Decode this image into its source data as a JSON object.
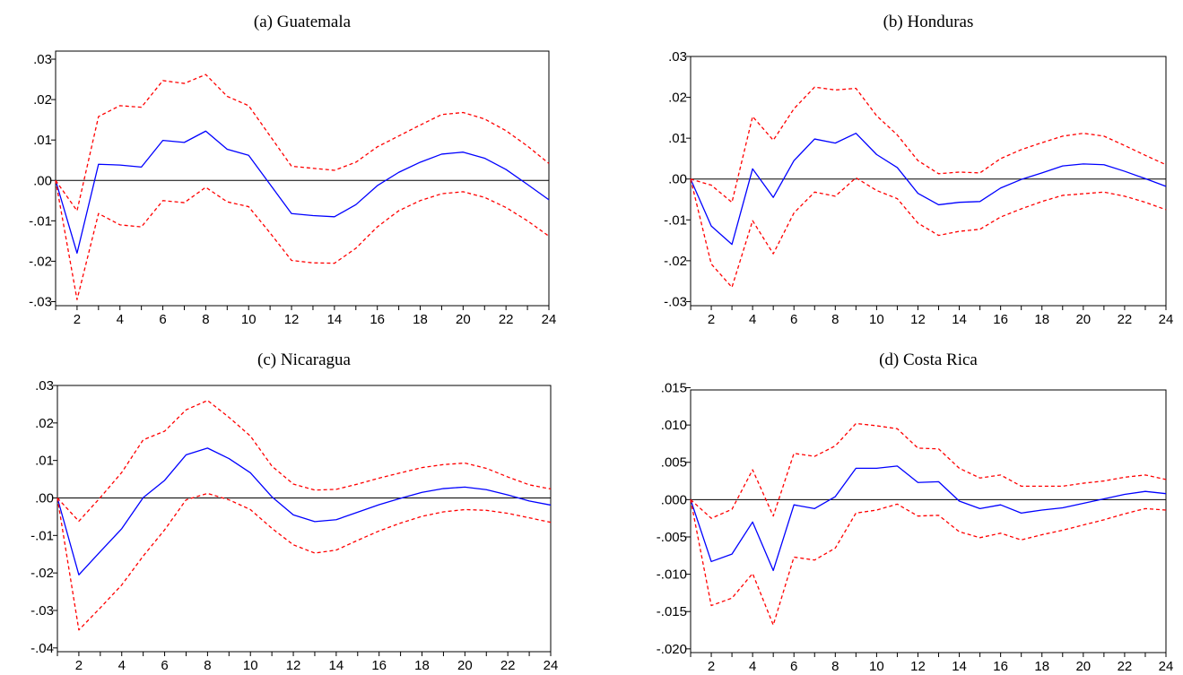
{
  "colors": {
    "response": "#0000ff",
    "band": "#ff0000",
    "axis": "#000000"
  },
  "chart_data": [
    {
      "type": "line",
      "title": "(a) Guatemala",
      "x": [
        1,
        2,
        3,
        4,
        5,
        6,
        7,
        8,
        9,
        10,
        11,
        12,
        13,
        14,
        15,
        16,
        17,
        18,
        19,
        20,
        21,
        22,
        23,
        24
      ],
      "xticks": [
        2,
        4,
        6,
        8,
        10,
        12,
        14,
        16,
        18,
        20,
        22,
        24
      ],
      "ylim": [
        -0.031,
        0.032
      ],
      "yticks": [
        -0.03,
        -0.02,
        -0.01,
        0.0,
        0.01,
        0.02,
        0.03
      ],
      "ytick_labels": [
        "-.03",
        "-.02",
        "-.01",
        ".00",
        ".01",
        ".02",
        ".03"
      ],
      "series": [
        {
          "style": "solid",
          "values": [
            0,
            -0.018,
            0.004,
            0.0038,
            0.0033,
            0.0099,
            0.0094,
            0.0122,
            0.0077,
            0.0062,
            -0.001,
            -0.0082,
            -0.0087,
            -0.009,
            -0.006,
            -0.0013,
            0.002,
            0.0045,
            0.0065,
            0.007,
            0.0055,
            0.0027,
            -0.001,
            -0.0048
          ]
        },
        {
          "style": "dashed",
          "values": [
            0,
            -0.0075,
            0.0158,
            0.0185,
            0.0181,
            0.0247,
            0.024,
            0.0262,
            0.0208,
            0.0185,
            0.011,
            0.0035,
            0.003,
            0.0025,
            0.0045,
            0.0083,
            0.011,
            0.0137,
            0.0163,
            0.0168,
            0.0152,
            0.0123,
            0.0085,
            0.0042
          ]
        },
        {
          "style": "dashed",
          "values": [
            0,
            -0.0295,
            -0.0082,
            -0.011,
            -0.0115,
            -0.005,
            -0.0055,
            -0.0017,
            -0.0053,
            -0.0065,
            -0.013,
            -0.0198,
            -0.0204,
            -0.0205,
            -0.0168,
            -0.0115,
            -0.0075,
            -0.005,
            -0.0033,
            -0.0028,
            -0.0042,
            -0.0067,
            -0.01,
            -0.0138
          ]
        }
      ]
    },
    {
      "type": "line",
      "title": "(b) Honduras",
      "x": [
        1,
        2,
        3,
        4,
        5,
        6,
        7,
        8,
        9,
        10,
        11,
        12,
        13,
        14,
        15,
        16,
        17,
        18,
        19,
        20,
        21,
        22,
        23,
        24
      ],
      "xticks": [
        2,
        4,
        6,
        8,
        10,
        12,
        14,
        16,
        18,
        20,
        22,
        24
      ],
      "ylim": [
        -0.031,
        0.03
      ],
      "yticks": [
        -0.03,
        -0.02,
        -0.01,
        0.0,
        0.01,
        0.02,
        0.03
      ],
      "ytick_labels": [
        "-.03",
        "-.02",
        "-.01",
        ".00",
        ".01",
        ".02",
        ".03"
      ],
      "series": [
        {
          "style": "solid",
          "values": [
            0,
            -0.0115,
            -0.016,
            0.0025,
            -0.0045,
            0.0045,
            0.0098,
            0.0088,
            0.0112,
            0.006,
            0.0028,
            -0.0035,
            -0.0063,
            -0.0057,
            -0.0055,
            -0.0022,
            -0.0001,
            0.0015,
            0.0032,
            0.0037,
            0.0035,
            0.0019,
            0.0001,
            -0.0018
          ]
        },
        {
          "style": "dashed",
          "values": [
            0,
            -0.0015,
            -0.0057,
            0.0153,
            0.0095,
            0.0172,
            0.0225,
            0.0218,
            0.0222,
            0.0155,
            0.0108,
            0.0045,
            0.0013,
            0.0017,
            0.0015,
            0.005,
            0.0072,
            0.0089,
            0.0105,
            0.0112,
            0.0105,
            0.0082,
            0.0058,
            0.0035
          ]
        },
        {
          "style": "dashed",
          "values": [
            0,
            -0.0208,
            -0.0265,
            -0.0102,
            -0.0183,
            -0.0083,
            -0.0032,
            -0.0042,
            0.0003,
            -0.0028,
            -0.0048,
            -0.0108,
            -0.0138,
            -0.0128,
            -0.0123,
            -0.0093,
            -0.0073,
            -0.0055,
            -0.004,
            -0.0036,
            -0.0032,
            -0.0042,
            -0.0057,
            -0.0075
          ]
        }
      ]
    },
    {
      "type": "line",
      "title": "(c) Nicaragua",
      "x": [
        1,
        2,
        3,
        4,
        5,
        6,
        7,
        8,
        9,
        10,
        11,
        12,
        13,
        14,
        15,
        16,
        17,
        18,
        19,
        20,
        21,
        22,
        23,
        24
      ],
      "xticks": [
        2,
        4,
        6,
        8,
        10,
        12,
        14,
        16,
        18,
        20,
        22,
        24
      ],
      "ylim": [
        -0.041,
        0.03
      ],
      "yticks": [
        -0.04,
        -0.03,
        -0.02,
        -0.01,
        0.0,
        0.01,
        0.02,
        0.03
      ],
      "ytick_labels": [
        "-.04",
        "-.03",
        "-.02",
        "-.01",
        ".00",
        ".01",
        ".02",
        ".03"
      ],
      "series": [
        {
          "style": "solid",
          "values": [
            0,
            -0.0205,
            -0.0143,
            -0.0082,
            0.0001,
            0.0047,
            0.0115,
            0.0133,
            0.0105,
            0.0067,
            0.0003,
            -0.0045,
            -0.0063,
            -0.0058,
            -0.0038,
            -0.0018,
            -0.0001,
            0.0015,
            0.0025,
            0.0029,
            0.0022,
            0.0008,
            -0.0008,
            -0.0019
          ]
        },
        {
          "style": "dashed",
          "values": [
            0,
            -0.0062,
            0.0001,
            0.0068,
            0.0155,
            0.0178,
            0.0235,
            0.026,
            0.0215,
            0.0165,
            0.0085,
            0.0037,
            0.0021,
            0.0023,
            0.0037,
            0.0053,
            0.0067,
            0.0081,
            0.0089,
            0.0093,
            0.0079,
            0.0056,
            0.0035,
            0.0024
          ]
        },
        {
          "style": "dashed",
          "values": [
            0,
            -0.0352,
            -0.0293,
            -0.0232,
            -0.0155,
            -0.0085,
            -0.0005,
            0.0012,
            -0.0005,
            -0.0031,
            -0.0081,
            -0.0125,
            -0.0147,
            -0.0139,
            -0.0113,
            -0.0088,
            -0.0067,
            -0.0049,
            -0.0037,
            -0.0031,
            -0.0033,
            -0.0041,
            -0.0053,
            -0.0065
          ]
        }
      ]
    },
    {
      "type": "line",
      "title": "(d) Costa Rica",
      "x": [
        1,
        2,
        3,
        4,
        5,
        6,
        7,
        8,
        9,
        10,
        11,
        12,
        13,
        14,
        15,
        16,
        17,
        18,
        19,
        20,
        21,
        22,
        23,
        24
      ],
      "xticks": [
        2,
        4,
        6,
        8,
        10,
        12,
        14,
        16,
        18,
        20,
        22,
        24
      ],
      "ylim": [
        -0.0205,
        0.0147
      ],
      "yticks": [
        -0.02,
        -0.015,
        -0.01,
        -0.005,
        0.0,
        0.005,
        0.01,
        0.015
      ],
      "ytick_labels": [
        "-.020",
        "-.015",
        "-.010",
        "-.005",
        ".000",
        ".005",
        ".010",
        ".015"
      ],
      "series": [
        {
          "style": "solid",
          "values": [
            0,
            -0.0083,
            -0.0073,
            -0.003,
            -0.0095,
            -0.0007,
            -0.0012,
            0.0004,
            0.0042,
            0.0042,
            0.0045,
            0.0023,
            0.0024,
            -0.0002,
            -0.0012,
            -0.0007,
            -0.0018,
            -0.0014,
            -0.0011,
            -0.0005,
            0.0001,
            0.0007,
            0.0011,
            0.0008
          ]
        },
        {
          "style": "dashed",
          "values": [
            0,
            -0.0025,
            -0.0013,
            0.004,
            -0.0022,
            0.0062,
            0.0058,
            0.0072,
            0.0102,
            0.0099,
            0.0095,
            0.0069,
            0.0068,
            0.0042,
            0.0029,
            0.0033,
            0.0018,
            0.0018,
            0.0018,
            0.0022,
            0.0025,
            0.003,
            0.0033,
            0.0027
          ]
        },
        {
          "style": "dashed",
          "values": [
            0,
            -0.0142,
            -0.0132,
            -0.0099,
            -0.0168,
            -0.0077,
            -0.0081,
            -0.0065,
            -0.0018,
            -0.0014,
            -0.0006,
            -0.0022,
            -0.0021,
            -0.0043,
            -0.0051,
            -0.0045,
            -0.0054,
            -0.0047,
            -0.0041,
            -0.0034,
            -0.0027,
            -0.0019,
            -0.0012,
            -0.0014
          ]
        }
      ]
    }
  ]
}
